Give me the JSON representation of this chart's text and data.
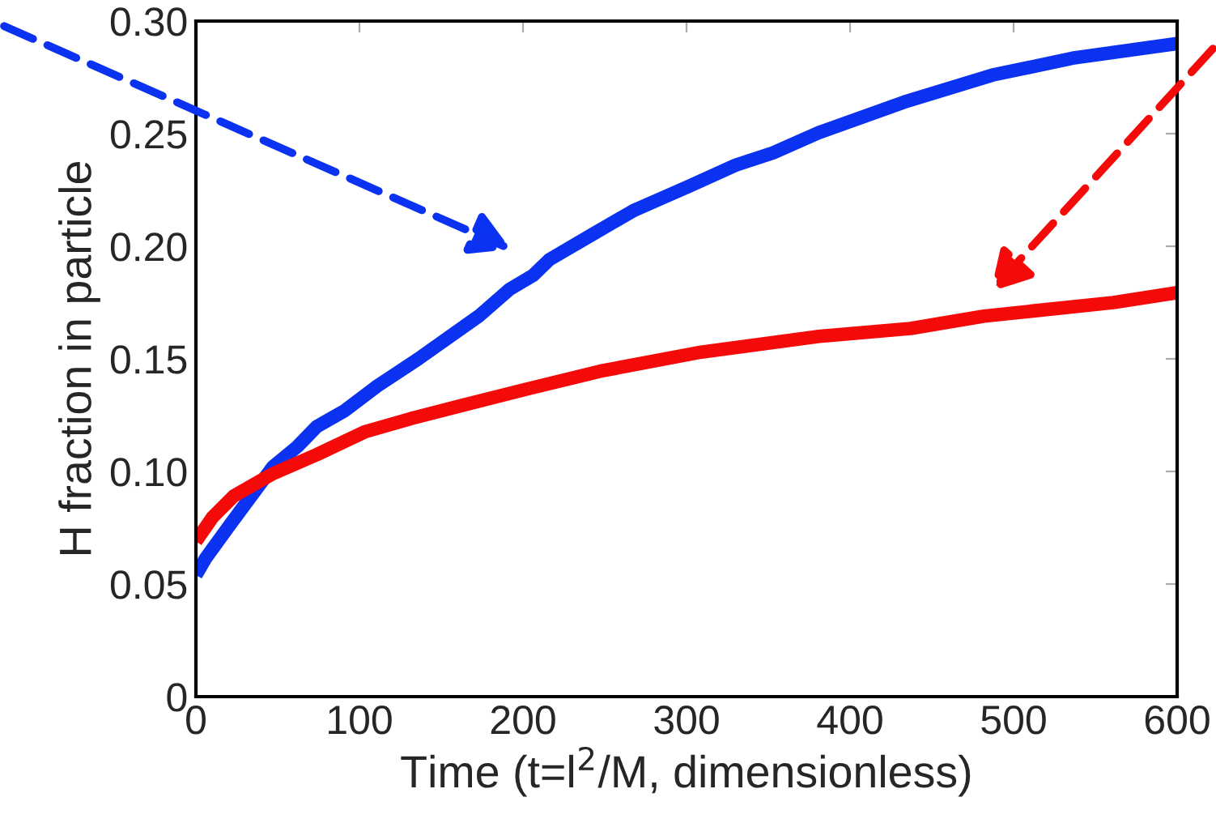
{
  "chart_data": {
    "type": "line",
    "xlabel": "Time (t=l$^{2}$/M, dimensionless)",
    "ylabel": "H fraction in particle",
    "xlim": [
      0,
      600
    ],
    "ylim": [
      0,
      0.3
    ],
    "xticks": [
      0,
      100,
      200,
      300,
      400,
      500,
      600
    ],
    "yticks": [
      0,
      {
        "value": 0.05,
        "label": "0.05"
      },
      {
        "value": 0.1,
        "label": "0.10"
      },
      {
        "value": 0.15,
        "label": "0.15"
      },
      {
        "value": 0.2,
        "label": "0.20"
      },
      {
        "value": 0.25,
        "label": "0.25"
      },
      {
        "value": 0.3,
        "label": "0.30"
      }
    ],
    "grid": false,
    "legend": false,
    "marker": "none",
    "line_style": "solid",
    "series": [
      {
        "color": "#0a32f0",
        "x": [
          0,
          6,
          21,
          47,
          62,
          74,
          91,
          111,
          136,
          173,
          192,
          206,
          216,
          243,
          268,
          301,
          330,
          353,
          381,
          433,
          487,
          536,
          600
        ],
        "values": [
          0.054,
          0.0615,
          0.0765,
          0.102,
          0.111,
          0.12,
          0.127,
          0.138,
          0.15,
          0.169,
          0.181,
          0.187,
          0.194,
          0.2055,
          0.216,
          0.2265,
          0.236,
          0.2415,
          0.2505,
          0.264,
          0.276,
          0.2835,
          0.29
        ]
      },
      {
        "color": "#f50a0a",
        "x": [
          0,
          10,
          23,
          47,
          74,
          103,
          132,
          161,
          202,
          247,
          309,
          381,
          437,
          482,
          561,
          600
        ],
        "values": [
          0.069,
          0.0795,
          0.089,
          0.099,
          0.1075,
          0.1175,
          0.1236,
          0.129,
          0.1365,
          0.1445,
          0.153,
          0.16,
          0.1635,
          0.169,
          0.175,
          0.1794
        ]
      }
    ]
  }
}
